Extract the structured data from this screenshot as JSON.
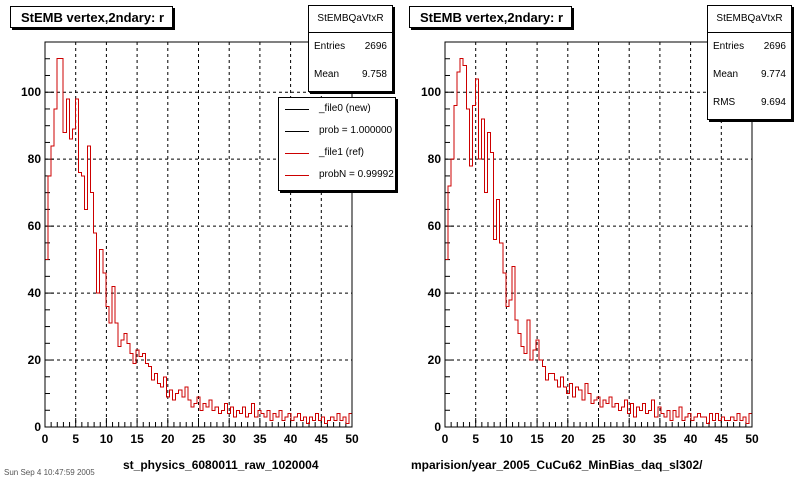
{
  "colors": {
    "new": "#000000",
    "ref": "#cc0000",
    "grid": "#000000"
  },
  "chart_data": [
    {
      "type": "line",
      "title": "StEMB  vertex,2ndary: r",
      "xlabel": "st_physics_6080011_raw_1020004",
      "x_range": [
        0,
        50
      ],
      "y_range": [
        0,
        115
      ],
      "x_ticks": [
        "0",
        "5",
        "10",
        "15",
        "20",
        "25",
        "30",
        "35",
        "40",
        "45",
        "50"
      ],
      "y_ticks": [
        "0",
        "20",
        "40",
        "60",
        "80",
        "100"
      ],
      "grid": true,
      "stats": {
        "name": "StEMBQaVtxR",
        "entries_label": "Entries",
        "entries": "2696",
        "mean_label": "Mean",
        "mean": "9.758"
      },
      "legend": [
        "_file0 (new)",
        "prob = 1.000000",
        "_file1 (ref)",
        "probN = 0.99992"
      ],
      "series": [
        {
          "name": "_file0 (new)",
          "color": "#000000",
          "values": [
            50,
            75,
            84,
            95,
            110,
            110,
            88,
            98,
            86,
            89,
            98,
            76,
            75,
            65,
            84,
            70,
            58,
            40,
            53,
            46,
            36,
            31,
            42,
            31,
            24,
            26,
            28,
            25,
            22,
            19,
            23,
            21,
            22,
            19,
            18,
            14,
            16,
            13,
            12,
            15,
            9,
            11,
            8,
            10,
            11,
            9,
            12,
            8,
            6,
            7,
            9,
            5,
            7,
            6,
            8,
            5,
            6,
            4,
            5,
            7,
            4,
            6,
            3,
            5,
            4,
            6,
            3,
            4,
            7,
            3,
            5,
            4,
            3,
            5,
            2,
            4,
            3,
            5,
            2,
            3,
            4,
            2,
            3,
            4,
            2,
            3,
            1,
            3,
            2,
            4,
            2,
            3,
            1,
            2,
            3,
            2,
            4,
            2,
            3,
            1,
            4
          ]
        },
        {
          "name": "_file1 (ref)",
          "color": "#cc0000",
          "values": [
            50,
            75,
            84,
            95,
            110,
            110,
            88,
            98,
            86,
            89,
            98,
            76,
            75,
            65,
            84,
            70,
            58,
            40,
            53,
            46,
            36,
            31,
            42,
            31,
            24,
            26,
            28,
            25,
            22,
            19,
            23,
            21,
            22,
            19,
            18,
            14,
            16,
            13,
            12,
            15,
            9,
            11,
            8,
            10,
            11,
            9,
            12,
            8,
            6,
            7,
            9,
            5,
            7,
            6,
            8,
            5,
            6,
            4,
            5,
            7,
            4,
            6,
            3,
            5,
            4,
            6,
            3,
            4,
            7,
            3,
            5,
            4,
            3,
            5,
            2,
            4,
            3,
            5,
            2,
            3,
            4,
            2,
            3,
            4,
            2,
            3,
            1,
            3,
            2,
            4,
            2,
            3,
            1,
            2,
            3,
            2,
            4,
            2,
            3,
            1,
            4
          ]
        }
      ]
    },
    {
      "type": "line",
      "title": "StEMB  vertex,2ndary: r",
      "xlabel": "mparision/year_2005_CuCu62_MinBias_daq_sl302/",
      "x_range": [
        0,
        50
      ],
      "y_range": [
        0,
        115
      ],
      "x_ticks": [
        "0",
        "5",
        "10",
        "15",
        "20",
        "25",
        "30",
        "35",
        "40",
        "45",
        "50"
      ],
      "y_ticks": [
        "0",
        "20",
        "40",
        "60",
        "80",
        "100"
      ],
      "grid": true,
      "stats": {
        "name": "StEMBQaVtxR",
        "entries_label": "Entries",
        "entries": "2696",
        "mean_label": "Mean",
        "mean": "9.774",
        "rms_label": "RMS",
        "rms": "9.694"
      },
      "series": [
        {
          "name": "_file1 (ref)",
          "color": "#cc0000",
          "values": [
            50,
            72,
            80,
            96,
            106,
            110,
            108,
            95,
            78,
            96,
            104,
            80,
            92,
            70,
            88,
            82,
            56,
            68,
            55,
            46,
            36,
            38,
            48,
            32,
            28,
            24,
            22,
            32,
            20,
            23,
            26,
            20,
            18,
            14,
            16,
            16,
            14,
            12,
            15,
            12,
            10,
            13,
            9,
            12,
            11,
            8,
            13,
            10,
            7,
            8,
            9,
            6,
            8,
            7,
            9,
            6,
            7,
            5,
            6,
            8,
            4,
            7,
            3,
            6,
            5,
            7,
            4,
            5,
            8,
            3,
            6,
            4,
            3,
            5,
            2,
            5,
            3,
            6,
            2,
            3,
            4,
            2,
            3,
            4,
            3,
            3,
            1,
            4,
            2,
            4,
            2,
            3,
            2,
            2,
            3,
            2,
            4,
            2,
            3,
            1,
            4
          ]
        }
      ]
    }
  ],
  "footnote": "Sun Sep 4 10:47:59 2005"
}
